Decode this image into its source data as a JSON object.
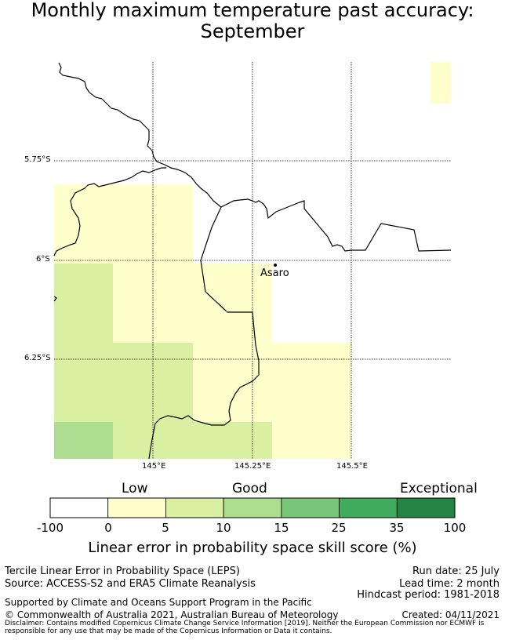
{
  "title_line1": "Monthly maximum temperature past accuracy:",
  "title_line2": "September",
  "lat_labels": [
    "5.75°S",
    "6°S",
    "6.25°S"
  ],
  "lon_labels": [
    "145°E",
    "145.25°E",
    "145.5°E"
  ],
  "place": "Asaro",
  "colorbar": {
    "category_labels": [
      "Low",
      "Good",
      "Exceptional"
    ],
    "ticks": [
      "-100",
      "0",
      "5",
      "10",
      "15",
      "25",
      "35",
      "100"
    ],
    "colors": [
      "#ffffff",
      "#ffffcc",
      "#d9f0a3",
      "#addd8e",
      "#78c679",
      "#41ab5d",
      "#238443"
    ],
    "title": "Linear error in probability space skill score (%)"
  },
  "footer": {
    "left1": "Tercile Linear Error in Probability Space (LEPS)",
    "left2": "Source: ACCESS-S2 and ERA5 Climate Reanalysis",
    "right1": "Run date: 25 July",
    "right2": "Lead time: 2 month",
    "right3": "Hindcast period: 1981-2018",
    "support": "Supported by Climate and Oceans Support Program in the Pacific",
    "copyright": "© Commonwealth of Australia 2021, Australian Bureau of Meteorology",
    "created": "Created: 04/11/2021",
    "disclaimer": "Disclaimer: Contains modified Copernicus Climate Change Service Information [2019]. Neither the European Commission nor ECMWF is responsible for any use that may be made of the Copernicus Information or Data it contains."
  }
}
